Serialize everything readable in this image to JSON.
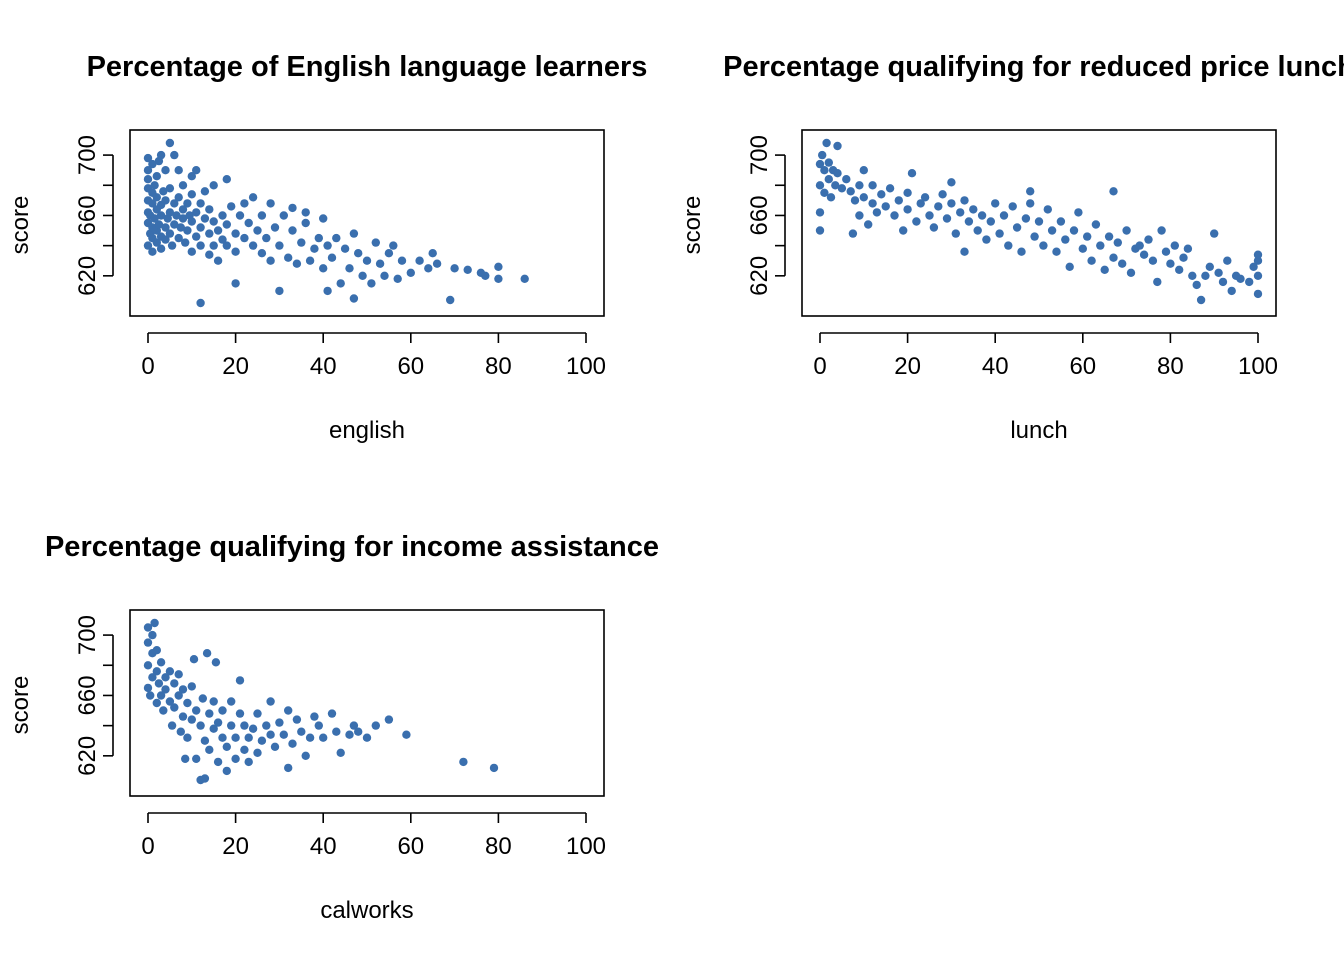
{
  "figure": {
    "point_color": "#3A6FAE"
  },
  "chart_data": [
    {
      "type": "scatter",
      "title": "Percentage of English language learners",
      "xlabel": "english",
      "ylabel": "score",
      "xlim": [
        0,
        100
      ],
      "ylim": [
        600,
        710
      ],
      "xticks": [
        0,
        20,
        40,
        60,
        80,
        100
      ],
      "yticks": [
        620,
        640,
        660,
        680,
        700
      ],
      "ytick_labels": [
        "620",
        "",
        "660",
        "",
        "700"
      ],
      "points": [
        [
          0,
          640
        ],
        [
          0,
          655
        ],
        [
          0,
          662
        ],
        [
          0,
          670
        ],
        [
          0,
          678
        ],
        [
          0,
          684
        ],
        [
          0,
          690
        ],
        [
          0,
          698
        ],
        [
          0.5,
          648
        ],
        [
          0.5,
          660
        ],
        [
          1,
          636
        ],
        [
          1,
          645
        ],
        [
          1,
          652
        ],
        [
          1,
          668
        ],
        [
          1,
          675
        ],
        [
          1,
          694
        ],
        [
          1.5,
          658
        ],
        [
          1.5,
          680
        ],
        [
          2,
          642
        ],
        [
          2,
          650
        ],
        [
          2,
          664
        ],
        [
          2,
          672
        ],
        [
          2,
          686
        ],
        [
          2.5,
          654
        ],
        [
          2.5,
          696
        ],
        [
          3,
          638
        ],
        [
          3,
          646
        ],
        [
          3,
          660
        ],
        [
          3,
          667
        ],
        [
          3,
          700
        ],
        [
          3.5,
          676
        ],
        [
          4,
          644
        ],
        [
          4,
          652
        ],
        [
          4,
          670
        ],
        [
          4,
          690
        ],
        [
          4.5,
          658
        ],
        [
          5,
          648
        ],
        [
          5,
          662
        ],
        [
          5,
          678
        ],
        [
          5,
          708
        ],
        [
          5.5,
          640
        ],
        [
          6,
          654
        ],
        [
          6,
          668
        ],
        [
          6,
          700
        ],
        [
          6.5,
          660
        ],
        [
          7,
          645
        ],
        [
          7,
          672
        ],
        [
          7,
          690
        ],
        [
          7.5,
          652
        ],
        [
          8,
          658
        ],
        [
          8,
          664
        ],
        [
          8,
          680
        ],
        [
          8.5,
          642
        ],
        [
          9,
          650
        ],
        [
          9,
          668
        ],
        [
          9.5,
          660
        ],
        [
          10,
          636
        ],
        [
          10,
          656
        ],
        [
          10,
          674
        ],
        [
          10,
          686
        ],
        [
          11,
          646
        ],
        [
          11,
          662
        ],
        [
          11,
          690
        ],
        [
          12,
          652
        ],
        [
          12,
          668
        ],
        [
          12,
          640
        ],
        [
          12,
          602
        ],
        [
          13,
          658
        ],
        [
          13,
          676
        ],
        [
          14,
          634
        ],
        [
          14,
          648
        ],
        [
          14,
          664
        ],
        [
          15,
          656
        ],
        [
          15,
          640
        ],
        [
          15,
          680
        ],
        [
          16,
          650
        ],
        [
          16,
          630
        ],
        [
          17,
          660
        ],
        [
          17,
          644
        ],
        [
          18,
          640
        ],
        [
          18,
          654
        ],
        [
          18,
          684
        ],
        [
          19,
          666
        ],
        [
          20,
          648
        ],
        [
          20,
          615
        ],
        [
          20,
          636
        ],
        [
          21,
          660
        ],
        [
          22,
          645
        ],
        [
          22,
          668
        ],
        [
          23,
          655
        ],
        [
          24,
          640
        ],
        [
          24,
          672
        ],
        [
          25,
          650
        ],
        [
          26,
          635
        ],
        [
          26,
          660
        ],
        [
          27,
          645
        ],
        [
          28,
          668
        ],
        [
          28,
          630
        ],
        [
          29,
          652
        ],
        [
          30,
          640
        ],
        [
          30,
          610
        ],
        [
          31,
          660
        ],
        [
          32,
          632
        ],
        [
          33,
          650
        ],
        [
          33,
          665
        ],
        [
          34,
          628
        ],
        [
          35,
          642
        ],
        [
          36,
          655
        ],
        [
          36,
          662
        ],
        [
          37,
          630
        ],
        [
          38,
          638
        ],
        [
          39,
          645
        ],
        [
          40,
          625
        ],
        [
          40,
          658
        ],
        [
          41,
          610
        ],
        [
          41,
          640
        ],
        [
          42,
          632
        ],
        [
          43,
          645
        ],
        [
          44,
          615
        ],
        [
          45,
          638
        ],
        [
          46,
          625
        ],
        [
          47,
          648
        ],
        [
          47,
          605
        ],
        [
          48,
          635
        ],
        [
          49,
          620
        ],
        [
          50,
          630
        ],
        [
          51,
          615
        ],
        [
          52,
          642
        ],
        [
          53,
          628
        ],
        [
          54,
          620
        ],
        [
          55,
          635
        ],
        [
          56,
          640
        ],
        [
          57,
          618
        ],
        [
          58,
          630
        ],
        [
          60,
          622
        ],
        [
          62,
          630
        ],
        [
          64,
          625
        ],
        [
          65,
          635
        ],
        [
          66,
          628
        ],
        [
          69,
          604
        ],
        [
          70,
          625
        ],
        [
          73,
          624
        ],
        [
          76,
          622
        ],
        [
          77,
          620
        ],
        [
          80,
          626
        ],
        [
          80,
          618
        ],
        [
          86,
          618
        ]
      ]
    },
    {
      "type": "scatter",
      "title": "Percentage qualifying for reduced price lunch",
      "xlabel": "lunch",
      "ylabel": "score",
      "xlim": [
        0,
        100
      ],
      "ylim": [
        600,
        710
      ],
      "xticks": [
        0,
        20,
        40,
        60,
        80,
        100
      ],
      "yticks": [
        620,
        640,
        660,
        680,
        700
      ],
      "ytick_labels": [
        "620",
        "",
        "660",
        "",
        "700"
      ],
      "points": [
        [
          0,
          650
        ],
        [
          0,
          662
        ],
        [
          0,
          680
        ],
        [
          0,
          694
        ],
        [
          0.5,
          700
        ],
        [
          1,
          690
        ],
        [
          1,
          675
        ],
        [
          1.5,
          708
        ],
        [
          2,
          695
        ],
        [
          2,
          684
        ],
        [
          2.5,
          672
        ],
        [
          3,
          690
        ],
        [
          3.5,
          680
        ],
        [
          4,
          706
        ],
        [
          4,
          688
        ],
        [
          5,
          678
        ],
        [
          6,
          684
        ],
        [
          7,
          676
        ],
        [
          7.5,
          648
        ],
        [
          8,
          670
        ],
        [
          9,
          660
        ],
        [
          9,
          680
        ],
        [
          10,
          672
        ],
        [
          10,
          690
        ],
        [
          11,
          654
        ],
        [
          12,
          668
        ],
        [
          12,
          680
        ],
        [
          13,
          662
        ],
        [
          14,
          674
        ],
        [
          15,
          666
        ],
        [
          16,
          678
        ],
        [
          17,
          660
        ],
        [
          18,
          670
        ],
        [
          19,
          650
        ],
        [
          20,
          664
        ],
        [
          20,
          675
        ],
        [
          21,
          688
        ],
        [
          22,
          656
        ],
        [
          23,
          668
        ],
        [
          24,
          672
        ],
        [
          25,
          660
        ],
        [
          26,
          652
        ],
        [
          27,
          666
        ],
        [
          28,
          674
        ],
        [
          29,
          658
        ],
        [
          30,
          668
        ],
        [
          30,
          682
        ],
        [
          31,
          648
        ],
        [
          32,
          662
        ],
        [
          33,
          670
        ],
        [
          33,
          636
        ],
        [
          34,
          656
        ],
        [
          35,
          664
        ],
        [
          36,
          650
        ],
        [
          37,
          660
        ],
        [
          38,
          644
        ],
        [
          39,
          656
        ],
        [
          40,
          668
        ],
        [
          41,
          648
        ],
        [
          42,
          660
        ],
        [
          43,
          640
        ],
        [
          44,
          666
        ],
        [
          45,
          652
        ],
        [
          46,
          636
        ],
        [
          47,
          658
        ],
        [
          48,
          668
        ],
        [
          48,
          676
        ],
        [
          49,
          646
        ],
        [
          50,
          656
        ],
        [
          51,
          640
        ],
        [
          52,
          664
        ],
        [
          53,
          650
        ],
        [
          54,
          636
        ],
        [
          55,
          656
        ],
        [
          56,
          644
        ],
        [
          57,
          626
        ],
        [
          58,
          650
        ],
        [
          59,
          662
        ],
        [
          60,
          638
        ],
        [
          61,
          646
        ],
        [
          62,
          630
        ],
        [
          63,
          654
        ],
        [
          64,
          640
        ],
        [
          65,
          624
        ],
        [
          66,
          646
        ],
        [
          67,
          676
        ],
        [
          67,
          632
        ],
        [
          68,
          642
        ],
        [
          69,
          628
        ],
        [
          70,
          650
        ],
        [
          71,
          622
        ],
        [
          72,
          638
        ],
        [
          73,
          640
        ],
        [
          74,
          634
        ],
        [
          75,
          644
        ],
        [
          76,
          630
        ],
        [
          77,
          616
        ],
        [
          78,
          650
        ],
        [
          79,
          636
        ],
        [
          80,
          628
        ],
        [
          81,
          640
        ],
        [
          82,
          624
        ],
        [
          83,
          632
        ],
        [
          84,
          638
        ],
        [
          85,
          620
        ],
        [
          86,
          614
        ],
        [
          87,
          604
        ],
        [
          88,
          620
        ],
        [
          89,
          626
        ],
        [
          90,
          648
        ],
        [
          91,
          622
        ],
        [
          92,
          616
        ],
        [
          93,
          630
        ],
        [
          94,
          610
        ],
        [
          95,
          620
        ],
        [
          96,
          618
        ],
        [
          98,
          616
        ],
        [
          99,
          626
        ],
        [
          100,
          608
        ],
        [
          100,
          620
        ],
        [
          100,
          630
        ],
        [
          100,
          634
        ]
      ]
    },
    {
      "type": "scatter",
      "title": "Percentage qualifying for income assistance",
      "xlabel": "calworks",
      "ylabel": "score",
      "xlim": [
        0,
        100
      ],
      "ylim": [
        600,
        710
      ],
      "xticks": [
        0,
        20,
        40,
        60,
        80,
        100
      ],
      "yticks": [
        620,
        640,
        660,
        680,
        700
      ],
      "ytick_labels": [
        "620",
        "",
        "660",
        "",
        "700"
      ],
      "points": [
        [
          0,
          665
        ],
        [
          0,
          680
        ],
        [
          0,
          695
        ],
        [
          0,
          705
        ],
        [
          0.5,
          660
        ],
        [
          1,
          688
        ],
        [
          1,
          700
        ],
        [
          1,
          672
        ],
        [
          1.5,
          708
        ],
        [
          2,
          676
        ],
        [
          2,
          690
        ],
        [
          2,
          655
        ],
        [
          2.5,
          668
        ],
        [
          3,
          660
        ],
        [
          3,
          682
        ],
        [
          3.5,
          650
        ],
        [
          4,
          672
        ],
        [
          4,
          664
        ],
        [
          5,
          656
        ],
        [
          5,
          676
        ],
        [
          5.5,
          640
        ],
        [
          6,
          668
        ],
        [
          6,
          652
        ],
        [
          7,
          660
        ],
        [
          7,
          674
        ],
        [
          7.5,
          636
        ],
        [
          8,
          646
        ],
        [
          8,
          664
        ],
        [
          8.5,
          618
        ],
        [
          9,
          655
        ],
        [
          9,
          632
        ],
        [
          10,
          666
        ],
        [
          10,
          644
        ],
        [
          10.5,
          684
        ],
        [
          11,
          618
        ],
        [
          11,
          650
        ],
        [
          12,
          640
        ],
        [
          12,
          604
        ],
        [
          12.5,
          658
        ],
        [
          13,
          605
        ],
        [
          13,
          630
        ],
        [
          13.5,
          688
        ],
        [
          14,
          648
        ],
        [
          14,
          624
        ],
        [
          15,
          656
        ],
        [
          15,
          638
        ],
        [
          15.5,
          682
        ],
        [
          16,
          616
        ],
        [
          16,
          642
        ],
        [
          17,
          632
        ],
        [
          17,
          650
        ],
        [
          18,
          626
        ],
        [
          18,
          610
        ],
        [
          19,
          640
        ],
        [
          19,
          656
        ],
        [
          20,
          632
        ],
        [
          20,
          618
        ],
        [
          21,
          648
        ],
        [
          21,
          670
        ],
        [
          22,
          624
        ],
        [
          22,
          640
        ],
        [
          23,
          616
        ],
        [
          23,
          632
        ],
        [
          24,
          638
        ],
        [
          25,
          648
        ],
        [
          25,
          622
        ],
        [
          26,
          630
        ],
        [
          27,
          640
        ],
        [
          28,
          634
        ],
        [
          28,
          656
        ],
        [
          29,
          626
        ],
        [
          30,
          642
        ],
        [
          31,
          634
        ],
        [
          32,
          650
        ],
        [
          32,
          612
        ],
        [
          33,
          628
        ],
        [
          34,
          644
        ],
        [
          35,
          636
        ],
        [
          36,
          620
        ],
        [
          37,
          632
        ],
        [
          38,
          646
        ],
        [
          39,
          640
        ],
        [
          40,
          632
        ],
        [
          42,
          648
        ],
        [
          43,
          636
        ],
        [
          44,
          622
        ],
        [
          46,
          634
        ],
        [
          47,
          640
        ],
        [
          48,
          636
        ],
        [
          50,
          632
        ],
        [
          52,
          640
        ],
        [
          55,
          644
        ],
        [
          59,
          634
        ],
        [
          72,
          616
        ],
        [
          79,
          612
        ]
      ]
    }
  ]
}
